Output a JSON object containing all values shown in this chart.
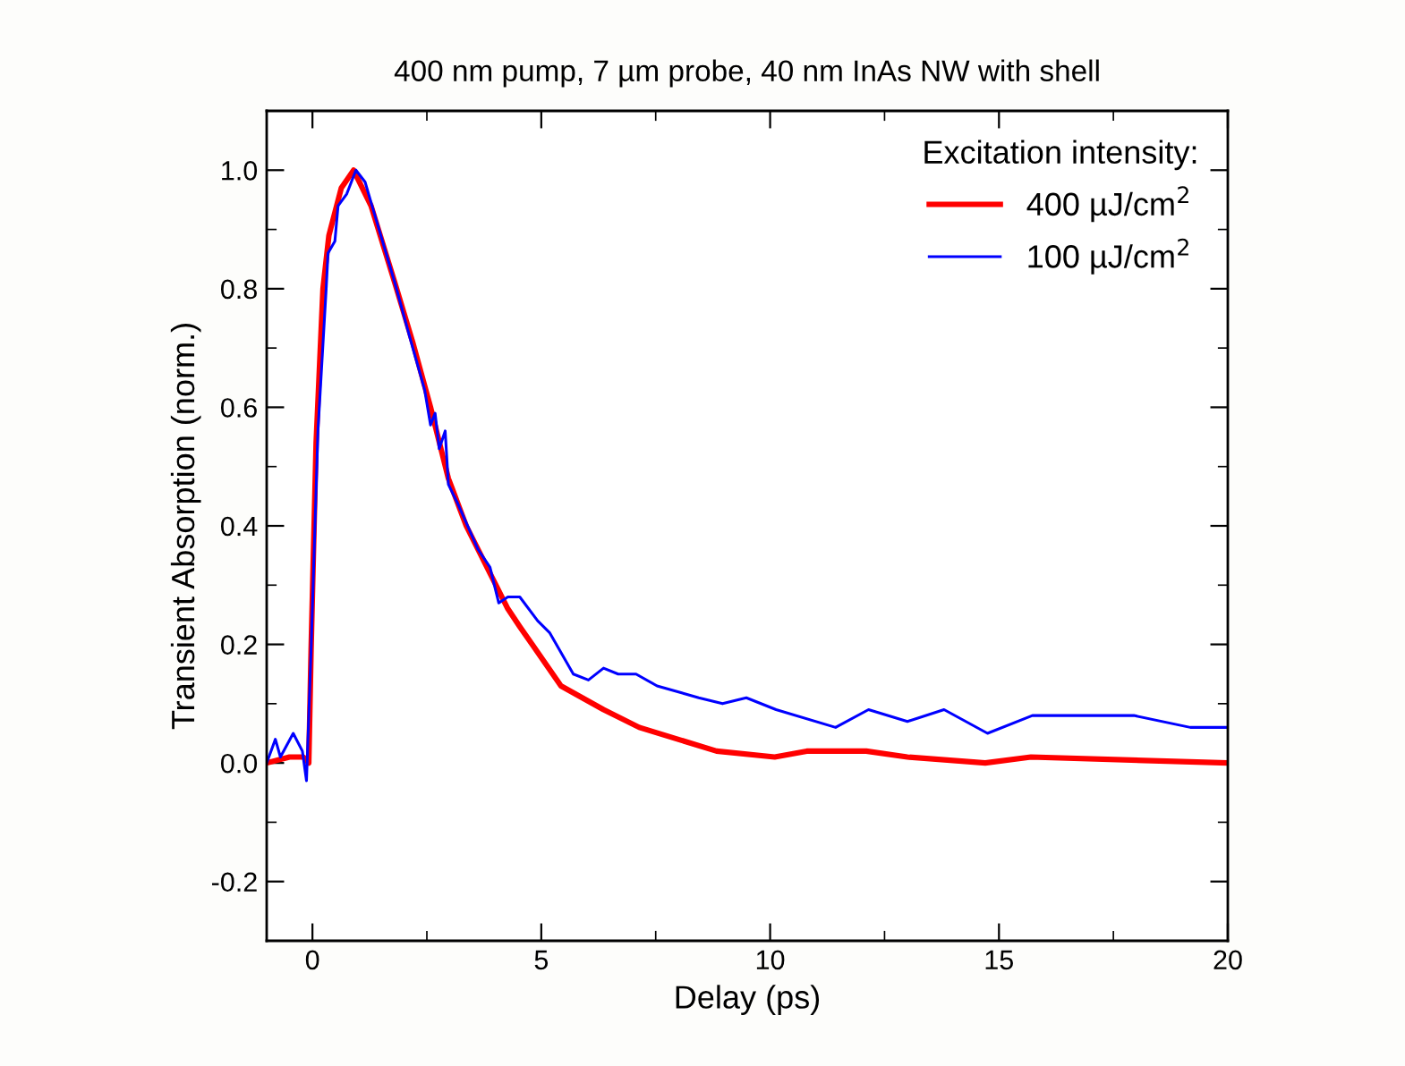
{
  "chart_data": {
    "type": "line",
    "title": "400 nm pump, 7 µm probe, 40 nm InAs NW with shell",
    "xlabel": "Delay (ps)",
    "ylabel": "Transient Absorption (norm.)",
    "legend_title": "Excitation intensity:",
    "legend": "top right",
    "grid": false,
    "marker": "none",
    "line_style": "solid",
    "xlim": [
      -1,
      20
    ],
    "ylim": [
      -0.3,
      1.1
    ],
    "xticks": [
      0,
      5,
      10,
      15,
      20
    ],
    "yticks": [
      -0.2,
      {
        "value": 0,
        "label": "0.0"
      },
      0.2,
      0.4,
      0.6,
      0.8,
      {
        "value": 1,
        "label": "1.0"
      }
    ],
    "series": [
      {
        "name": "400 µJ/cm$^{2}$",
        "color": "#ff0000",
        "x": [
          -1,
          -0.5,
          -0.2,
          -0.08,
          -0.03,
          0.08,
          0.23,
          0.36,
          0.63,
          0.9,
          1.28,
          1.8,
          2.19,
          2.58,
          2.97,
          3.36,
          3.88,
          4.27,
          4.53,
          4.8,
          5.43,
          6.36,
          7.14,
          8.83,
          10.1,
          10.8,
          12.1,
          13.0,
          14.7,
          15.7,
          20
        ],
        "values": [
          0.0,
          0.01,
          0.01,
          0.0,
          0.19,
          0.54,
          0.8,
          0.89,
          0.97,
          1.0,
          0.94,
          0.81,
          0.71,
          0.6,
          0.48,
          0.4,
          0.32,
          0.26,
          0.23,
          0.2,
          0.13,
          0.09,
          0.06,
          0.02,
          0.01,
          0.02,
          0.02,
          0.01,
          0.0,
          0.01,
          0.0
        ]
      },
      {
        "name": "100 µJ/cm$^{2}$",
        "color": "#0000ff",
        "x": [
          -1,
          -0.81,
          -0.7,
          -0.42,
          -0.22,
          -0.13,
          -0.03,
          0.12,
          0.3,
          0.34,
          0.49,
          0.56,
          0.75,
          0.95,
          1.15,
          1.34,
          1.8,
          2.12,
          2.45,
          2.58,
          2.68,
          2.77,
          2.9,
          2.97,
          3.16,
          3.62,
          3.88,
          4.07,
          4.27,
          4.53,
          4.92,
          5.18,
          5.7,
          6.03,
          6.36,
          6.68,
          7.07,
          7.53,
          8.44,
          8.96,
          9.48,
          10.13,
          11.43,
          12.15,
          13.0,
          13.8,
          14.75,
          15.73,
          17.95,
          19.18,
          20
        ],
        "values": [
          0.0,
          0.04,
          0.01,
          0.05,
          0.02,
          -0.03,
          0.19,
          0.56,
          0.8,
          0.86,
          0.88,
          0.94,
          0.96,
          1.0,
          0.98,
          0.93,
          0.81,
          0.72,
          0.63,
          0.57,
          0.59,
          0.53,
          0.56,
          0.47,
          0.44,
          0.36,
          0.33,
          0.27,
          0.28,
          0.28,
          0.24,
          0.22,
          0.15,
          0.14,
          0.16,
          0.15,
          0.15,
          0.13,
          0.11,
          0.1,
          0.11,
          0.09,
          0.06,
          0.09,
          0.07,
          0.09,
          0.05,
          0.08,
          0.08,
          0.06,
          0.06
        ]
      }
    ]
  }
}
